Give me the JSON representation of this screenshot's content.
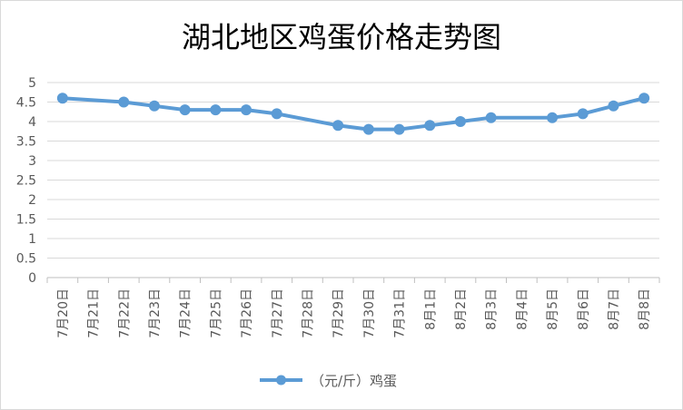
{
  "chart_data": {
    "type": "line",
    "title": "湖北地区鸡蛋价格走势图",
    "xlabel": "",
    "ylabel": "",
    "ylim": [
      0,
      5
    ],
    "yticks": [
      "0",
      "0.5",
      "1",
      "1.5",
      "2",
      "2.5",
      "3",
      "3.5",
      "4",
      "4.5",
      "5"
    ],
    "grid": true,
    "legend_position": "bottom",
    "categories": [
      "7月20日",
      "7月21日",
      "7月22日",
      "7月23日",
      "7月24日",
      "7月25日",
      "7月26日",
      "7月27日",
      "7月28日",
      "7月29日",
      "7月30日",
      "7月31日",
      "8月1日",
      "8月2日",
      "8月3日",
      "8月4日",
      "8月5日",
      "8月6日",
      "8月7日",
      "8月8日"
    ],
    "series": [
      {
        "name": "（元/斤）鸡蛋",
        "color": "#5b9bd5",
        "points": [
          {
            "x": "7月20日",
            "y": 4.6
          },
          {
            "x": "7月22日",
            "y": 4.5
          },
          {
            "x": "7月23日",
            "y": 4.4
          },
          {
            "x": "7月24日",
            "y": 4.3
          },
          {
            "x": "7月25日",
            "y": 4.3
          },
          {
            "x": "7月26日",
            "y": 4.3
          },
          {
            "x": "7月27日",
            "y": 4.2
          },
          {
            "x": "7月29日",
            "y": 3.9
          },
          {
            "x": "7月30日",
            "y": 3.8
          },
          {
            "x": "7月31日",
            "y": 3.8
          },
          {
            "x": "8月1日",
            "y": 3.9
          },
          {
            "x": "8月2日",
            "y": 4.0
          },
          {
            "x": "8月3日",
            "y": 4.1
          },
          {
            "x": "8月5日",
            "y": 4.1
          },
          {
            "x": "8月6日",
            "y": 4.2
          },
          {
            "x": "8月7日",
            "y": 4.4
          },
          {
            "x": "8月8日",
            "y": 4.6
          }
        ]
      }
    ]
  }
}
